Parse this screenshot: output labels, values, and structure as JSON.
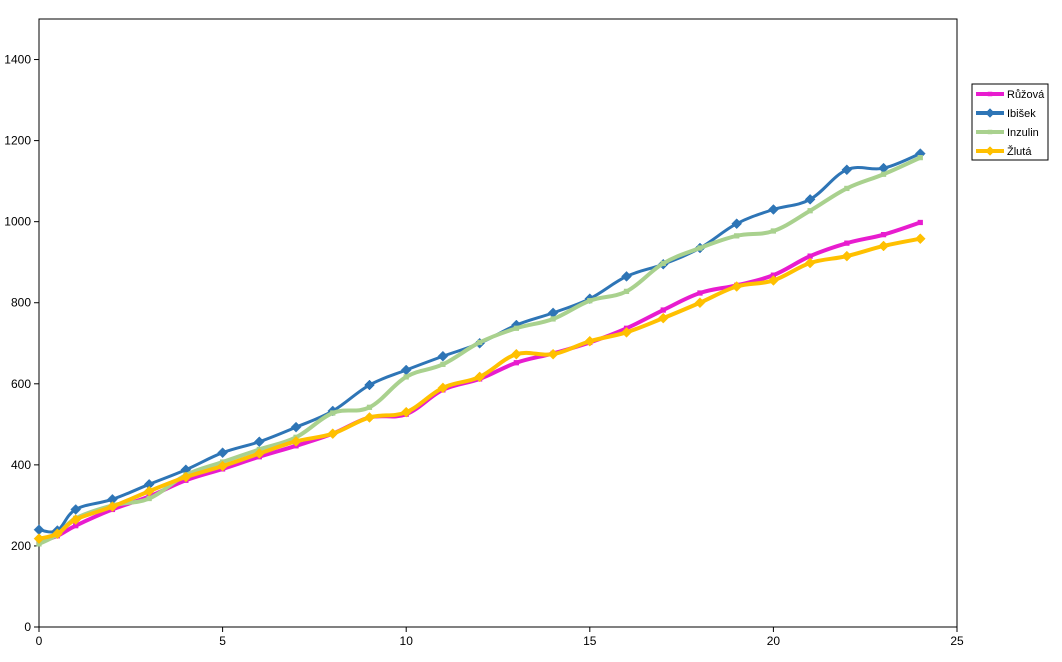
{
  "chart_data": {
    "type": "line",
    "title": "",
    "xlabel": "",
    "ylabel": "",
    "xlim": [
      0,
      25
    ],
    "ylim": [
      0,
      1500
    ],
    "xticks": [
      0,
      5,
      10,
      15,
      20,
      25
    ],
    "yticks": [
      0,
      200,
      400,
      600,
      800,
      1000,
      1200,
      1400
    ],
    "grid": false,
    "legend": {
      "position": "right"
    },
    "x": [
      0,
      0.5,
      1,
      2,
      3,
      4,
      5,
      6,
      7,
      8,
      9,
      10,
      11,
      12,
      13,
      14,
      15,
      16,
      17,
      18,
      19,
      20,
      21,
      22,
      23,
      24
    ],
    "series": [
      {
        "name": "Růžová",
        "color": "#E81CCF",
        "marker": "square",
        "values": [
          210,
          225,
          250,
          290,
          322,
          362,
          390,
          420,
          447,
          477,
          517,
          525,
          585,
          612,
          652,
          675,
          702,
          737,
          782,
          824,
          843,
          868,
          915,
          947,
          968,
          998
        ]
      },
      {
        "name": "Ibišek",
        "color": "#2E75B6",
        "marker": "diamond",
        "values": [
          240,
          238,
          290,
          315,
          352,
          388,
          430,
          457,
          493,
          533,
          597,
          634,
          668,
          700,
          745,
          775,
          810,
          865,
          895,
          935,
          995,
          1030,
          1055,
          1128,
          1132,
          1168
        ]
      },
      {
        "name": "Inzulin",
        "color": "#A9D18E",
        "marker": "square",
        "values": [
          205,
          228,
          268,
          300,
          317,
          375,
          407,
          438,
          468,
          528,
          542,
          617,
          648,
          702,
          737,
          760,
          805,
          828,
          897,
          935,
          965,
          977,
          1027,
          1082,
          1117,
          1158
        ]
      },
      {
        "name": "Žlutá",
        "color": "#FFC000",
        "marker": "diamond",
        "values": [
          218,
          230,
          265,
          297,
          335,
          370,
          397,
          428,
          458,
          477,
          517,
          530,
          590,
          617,
          673,
          673,
          705,
          727,
          762,
          800,
          840,
          855,
          898,
          915,
          940,
          958
        ]
      }
    ]
  }
}
